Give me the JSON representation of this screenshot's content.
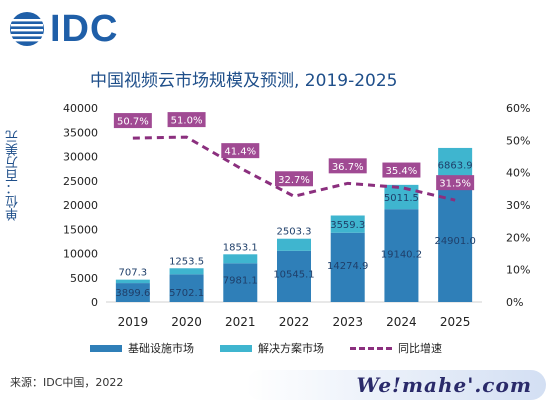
{
  "logo": {
    "text": "IDC"
  },
  "watermark": {
    "text": "We!mahe'.com"
  },
  "source": "来源：IDC中国，2022",
  "legend": {
    "infra": "基础设施市场",
    "solution": "解决方案市场",
    "growth": "同比增速"
  },
  "colors": {
    "infra": "#2f7fb8",
    "solution": "#3fb5cf",
    "growth": "#8b2f7e",
    "growth_label_bg": "#a04a93",
    "title": "#1f4f8a"
  },
  "chart_data": {
    "type": "bar",
    "title": "中国视频云市场规模及预测, 2019-2025",
    "ylabel": "单位：百万美元",
    "categories": [
      "2019",
      "2020",
      "2021",
      "2022",
      "2023",
      "2024",
      "2025"
    ],
    "series": [
      {
        "name": "基础设施市场",
        "type": "bar",
        "stack": "market",
        "values": [
          3899.6,
          5702.1,
          7981.1,
          10545.1,
          14274.9,
          19140.2,
          24901.0
        ]
      },
      {
        "name": "解决方案市场",
        "type": "bar",
        "stack": "market",
        "values": [
          707.3,
          1253.5,
          1853.1,
          2503.3,
          3559.3,
          5011.5,
          6863.9
        ]
      },
      {
        "name": "同比增速",
        "type": "line",
        "axis": "right",
        "values": [
          50.7,
          51.0,
          41.4,
          32.7,
          36.7,
          35.4,
          31.5
        ]
      }
    ],
    "data_labels": {
      "infra": [
        "3899.6",
        "5702.1",
        "7981.1",
        "10545.1",
        "14274.9",
        "19140.2",
        "24901.0"
      ],
      "solution": [
        "707.3",
        "1253.5",
        "1853.1",
        "2503.3",
        "3559.3",
        "5011.5",
        "6863.9"
      ],
      "growth": [
        "50.7%",
        "51.0%",
        "41.4%",
        "32.7%",
        "36.7%",
        "35.4%",
        "31.5%"
      ]
    },
    "ylim": [
      0,
      40000
    ],
    "yticks": [
      0,
      5000,
      10000,
      15000,
      20000,
      25000,
      30000,
      35000,
      40000
    ],
    "y2lim": [
      0,
      60
    ],
    "y2ticks": [
      "0%",
      "10%",
      "20%",
      "30%",
      "40%",
      "50%",
      "60%"
    ],
    "grid": false,
    "legend_position": "bottom"
  }
}
